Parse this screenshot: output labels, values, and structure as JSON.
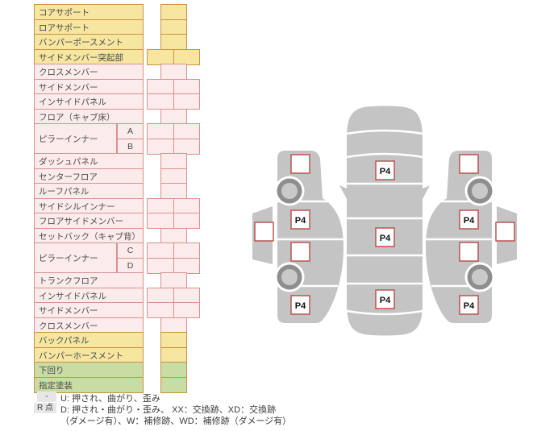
{
  "table": {
    "rows": [
      {
        "label": "コアサポート",
        "color": "yellow",
        "cells": "single"
      },
      {
        "label": "ロアサポート",
        "color": "yellow",
        "cells": "single"
      },
      {
        "label": "バンパーポースメント",
        "color": "yellow",
        "cells": "single"
      },
      {
        "label": "サイドメンバー突起部",
        "color": "yellow",
        "cells": "double"
      },
      {
        "label": "クロスメンバー",
        "color": "pink",
        "cells": "single"
      },
      {
        "label": "サイドメンバー",
        "color": "pink",
        "cells": "double"
      },
      {
        "label": "インサイドパネル",
        "color": "pink",
        "cells": "double"
      },
      {
        "label": "フロア（キャブ床）",
        "color": "pink",
        "cells": "single"
      },
      {
        "label": "ピラーインナー",
        "color": "pink",
        "cells": "double",
        "sub": "A",
        "span": 2
      },
      {
        "label": null,
        "color": "pink",
        "cells": "double",
        "sub": "B"
      },
      {
        "label": "ダッシュパネル",
        "color": "pink",
        "cells": "single"
      },
      {
        "label": "センターフロア",
        "color": "pink",
        "cells": "single"
      },
      {
        "label": "ルーフパネル",
        "color": "pink",
        "cells": "single"
      },
      {
        "label": "サイドシルインナー",
        "color": "pink",
        "cells": "double"
      },
      {
        "label": "フロアサイドメンバー",
        "color": "pink",
        "cells": "double"
      },
      {
        "label": "セットバック（キャブ背）",
        "color": "pink",
        "cells": "single"
      },
      {
        "label": "ピラーインナー",
        "color": "pink",
        "cells": "double",
        "sub": "C",
        "span": 2
      },
      {
        "label": null,
        "color": "pink",
        "cells": "double",
        "sub": "D"
      },
      {
        "label": "トランクフロア",
        "color": "pink",
        "cells": "single"
      },
      {
        "label": "インサイドパネル",
        "color": "pink",
        "cells": "double"
      },
      {
        "label": "サイドメンバー",
        "color": "pink",
        "cells": "double"
      },
      {
        "label": "クロスメンバー",
        "color": "pink",
        "cells": "single"
      },
      {
        "label": "バックパネル",
        "color": "yellow",
        "cells": "single"
      },
      {
        "label": "バンパーホースメント",
        "color": "yellow",
        "cells": "single"
      },
      {
        "label": "下回り",
        "color": "green",
        "cells": "single"
      },
      {
        "label": "指定塗装",
        "color": "green",
        "cells": "single"
      }
    ]
  },
  "legend": {
    "row1_chip": "-",
    "row1_text": "U: 押され、曲がり、歪み",
    "row2_chip": "R 点",
    "row2_text": "D: 押され・曲がり・歪み、 XX：交換跡、XD：交換跡",
    "row3_text": "（ダメージ有）、W：補修跡、WD：補修跡（ダメージ有）"
  },
  "diagram": {
    "markers": {
      "left_roof": "",
      "left_front": "",
      "left_door_front": "P4",
      "left_door_rear": "",
      "left_rear": "P4",
      "center_hood": "P4",
      "center_floor": "P4",
      "center_trunk": "P4",
      "right_front": "",
      "right_door_front": "P4",
      "right_door_rear": "",
      "right_rear": "P4",
      "right_roof": ""
    }
  },
  "colors": {
    "yellow": "#f6e6a0",
    "yellow_border": "#cb9147",
    "pink": "#fcebeb",
    "pink_border": "#d99191",
    "green": "#c9dca4",
    "green_border": "#cb9147",
    "marker_border": "#b94a48",
    "car_gray": "#c4c4c4"
  }
}
